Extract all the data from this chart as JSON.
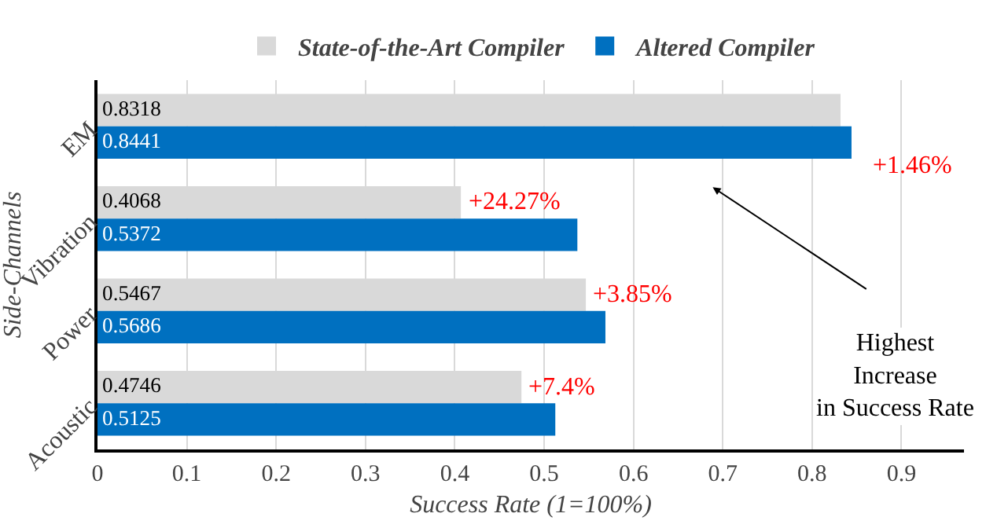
{
  "chart_data": {
    "type": "bar",
    "orientation": "horizontal",
    "categories": [
      "EM",
      "Vibration",
      "Power",
      "Acoustic"
    ],
    "series": [
      {
        "name": "State-of-the-Art Compiler",
        "color": "#d9d9d9",
        "values": [
          0.8318,
          0.4068,
          0.5467,
          0.4746
        ]
      },
      {
        "name": "Altered Compiler",
        "color": "#0070c0",
        "values": [
          0.8441,
          0.5372,
          0.5686,
          0.5125
        ]
      }
    ],
    "data_labels": true,
    "xlim": [
      0,
      0.97
    ],
    "xticks": [
      0,
      0.1,
      0.2,
      0.3,
      0.4,
      0.5,
      0.6,
      0.7,
      0.8,
      0.9
    ],
    "xlabel": "Success Rate (1=100%)",
    "ylabel": "Side-Channels",
    "grid": "x",
    "legend": "top",
    "annotations": [
      "+1.46%",
      "+24.27%",
      "+3.85%",
      "+7.4%",
      "Highest Increase in Success Rate"
    ]
  }
}
